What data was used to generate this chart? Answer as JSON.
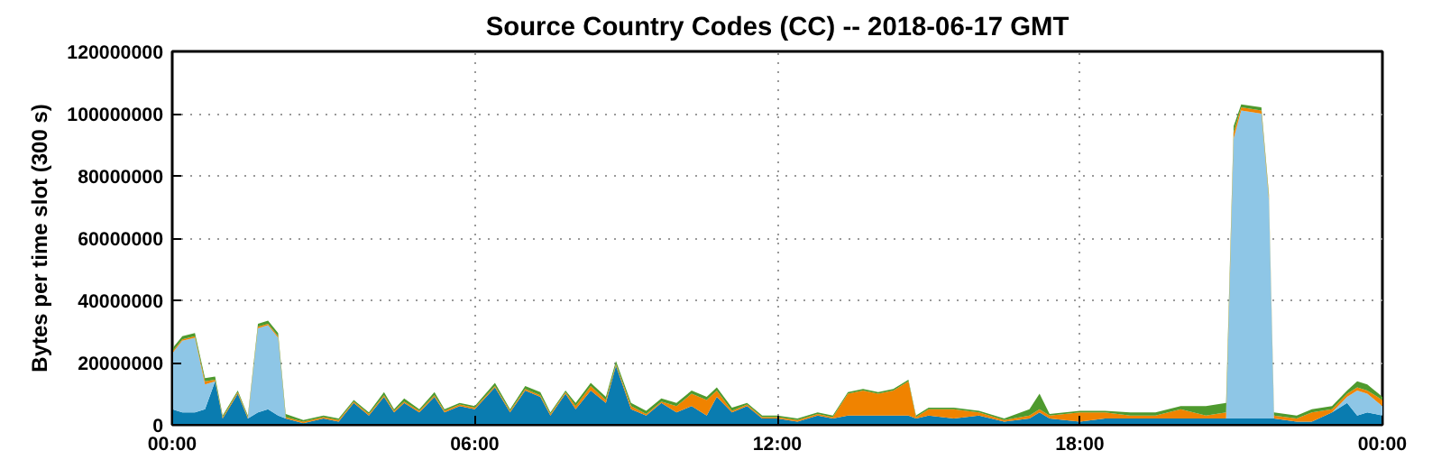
{
  "chart_data": {
    "type": "area",
    "stacked": true,
    "title": "Source Country Codes (CC) -- 2018-06-17 GMT",
    "ylabel": "Bytes per time slot (300 s)",
    "x": [
      0,
      0.2,
      0.45,
      0.65,
      0.85,
      1.0,
      1.3,
      1.5,
      1.7,
      1.9,
      2.1,
      2.25,
      2.6,
      3.0,
      3.3,
      3.6,
      3.9,
      4.2,
      4.4,
      4.6,
      4.9,
      5.2,
      5.4,
      5.7,
      6.0,
      6.4,
      6.7,
      7.0,
      7.3,
      7.5,
      7.8,
      8.0,
      8.3,
      8.6,
      8.8,
      9.1,
      9.4,
      9.7,
      10.0,
      10.3,
      10.6,
      10.8,
      11.1,
      11.4,
      11.7,
      12.0,
      12.4,
      12.8,
      13.1,
      13.4,
      13.7,
      14.0,
      14.3,
      14.6,
      14.75,
      15.0,
      15.5,
      16.0,
      16.5,
      17.0,
      17.2,
      17.4,
      18.0,
      18.5,
      19.0,
      19.5,
      20.0,
      20.5,
      20.9,
      21.05,
      21.2,
      21.6,
      21.75,
      21.85,
      22.3,
      22.6,
      23.0,
      23.3,
      23.5,
      23.7,
      24.0
    ],
    "series": [
      {
        "color": "#0a7cb0",
        "values": [
          5000000,
          4000000,
          4000000,
          5000000,
          14000000,
          2000000,
          10000000,
          2000000,
          4000000,
          5000000,
          3000000,
          2000000,
          500000,
          2000000,
          1000000,
          7000000,
          3000000,
          9000000,
          4000000,
          7000000,
          4000000,
          9000000,
          4000000,
          6000000,
          5000000,
          12000000,
          4000000,
          11000000,
          9000000,
          3000000,
          10000000,
          5000000,
          11000000,
          7000000,
          19000000,
          5000000,
          3000000,
          7000000,
          4000000,
          6000000,
          3000000,
          9000000,
          4000000,
          6000000,
          2000000,
          2000000,
          1000000,
          3000000,
          2000000,
          3000000,
          3000000,
          3000000,
          3000000,
          3000000,
          2000000,
          3000000,
          2000000,
          3000000,
          1000000,
          2000000,
          4000000,
          2000000,
          1000000,
          2000000,
          2000000,
          2000000,
          2000000,
          2000000,
          2000000,
          2000000,
          2000000,
          2000000,
          2000000,
          2000000,
          1000000,
          1000000,
          4000000,
          7000000,
          3000000,
          4000000,
          3000000
        ]
      },
      {
        "color": "#8ec6e6",
        "values": [
          18000000,
          23000000,
          24000000,
          8000000,
          0,
          0,
          0,
          0,
          27000000,
          27000000,
          25000000,
          0,
          0,
          0,
          0,
          0,
          0,
          0,
          0,
          0,
          0,
          0,
          0,
          0,
          0,
          0,
          0,
          0,
          0,
          0,
          0,
          0,
          0,
          0,
          0,
          0,
          0,
          0,
          0,
          0,
          0,
          0,
          0,
          0,
          0,
          0,
          0,
          0,
          0,
          0,
          0,
          0,
          0,
          0,
          0,
          0,
          0,
          0,
          0,
          0,
          0,
          0,
          0,
          0,
          0,
          0,
          0,
          0,
          0,
          90000000,
          99000000,
          98000000,
          70000000,
          0,
          0,
          0,
          0,
          2000000,
          8000000,
          6000000,
          3000000
        ]
      },
      {
        "color": "#f08300",
        "values": [
          500000,
          500000,
          500000,
          1000000,
          500000,
          500000,
          500000,
          500000,
          500000,
          500000,
          500000,
          500000,
          500000,
          500000,
          500000,
          500000,
          500000,
          500000,
          500000,
          500000,
          500000,
          500000,
          500000,
          500000,
          500000,
          500000,
          500000,
          500000,
          500000,
          500000,
          500000,
          1000000,
          1500000,
          1000000,
          500000,
          1000000,
          500000,
          500000,
          2000000,
          4000000,
          5000000,
          2000000,
          500000,
          500000,
          500000,
          500000,
          500000,
          500000,
          500000,
          7000000,
          8000000,
          7000000,
          8000000,
          11000000,
          500000,
          2000000,
          3000000,
          1000000,
          500000,
          1000000,
          1000000,
          1000000,
          3000000,
          2000000,
          1000000,
          1000000,
          3000000,
          1000000,
          2000000,
          2000000,
          1000000,
          1000000,
          1000000,
          1000000,
          1000000,
          3000000,
          1000000,
          1000000,
          1000000,
          1000000,
          2000000
        ]
      },
      {
        "color": "#4e9a2e",
        "values": [
          1000000,
          1000000,
          1000000,
          1000000,
          1000000,
          500000,
          500000,
          500000,
          1000000,
          1000000,
          1000000,
          1000000,
          500000,
          500000,
          500000,
          500000,
          500000,
          1000000,
          500000,
          1000000,
          500000,
          1000000,
          500000,
          500000,
          500000,
          1000000,
          500000,
          1000000,
          1000000,
          500000,
          500000,
          1000000,
          1000000,
          1000000,
          1000000,
          1000000,
          1000000,
          1000000,
          1000000,
          1000000,
          1000000,
          1000000,
          1000000,
          500000,
          500000,
          500000,
          500000,
          500000,
          500000,
          500000,
          500000,
          500000,
          500000,
          500000,
          500000,
          500000,
          500000,
          500000,
          500000,
          2000000,
          5000000,
          500000,
          500000,
          500000,
          1000000,
          1000000,
          1000000,
          3000000,
          3000000,
          2000000,
          1000000,
          1000000,
          1000000,
          1000000,
          1000000,
          1000000,
          1000000,
          1000000,
          2000000,
          2000000,
          1000000
        ]
      }
    ],
    "xlim": [
      0,
      24
    ],
    "xticks": [
      {
        "value": 0,
        "label": "00:00"
      },
      {
        "value": 6,
        "label": "06:00"
      },
      {
        "value": 12,
        "label": "12:00"
      },
      {
        "value": 18,
        "label": "18:00"
      },
      {
        "value": 24,
        "label": "00:00"
      }
    ],
    "ylim": [
      0,
      120000000
    ],
    "yticks": [
      0,
      20000000,
      40000000,
      60000000,
      80000000,
      100000000,
      120000000
    ],
    "grid": true
  }
}
